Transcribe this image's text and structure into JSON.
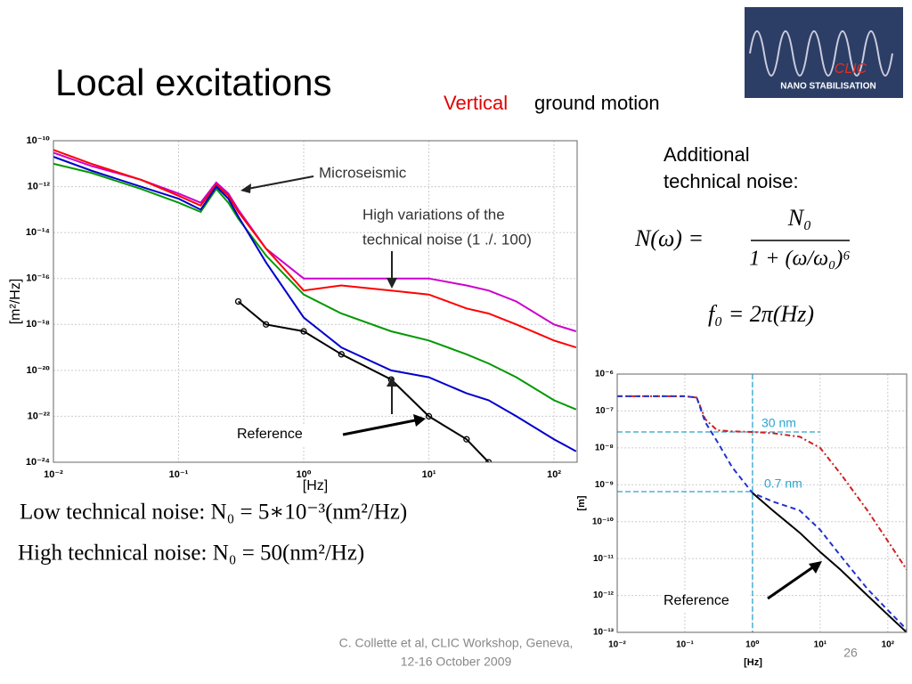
{
  "title": "Local excitations",
  "subtitle": {
    "highlight": "Vertical",
    "rest": "ground motion"
  },
  "note": [
    "Additional",
    "technical noise:"
  ],
  "formula": {
    "lhs": "N(ω) =",
    "numerator": "N₀",
    "denominator": "1 + (ω/ω₀)⁶"
  },
  "f0": "f₀ = 2π(Hz)",
  "low_noise": "Low technical noise:  N₀ = 5∗10⁻³(nm²/Hz)",
  "high_noise": "High technical noise:  N₀ = 50(nm²/Hz)",
  "footer": [
    "C. Collette et al, CLIC Workshop, Geneva,",
    "12-16 October 2009"
  ],
  "page_number": "26",
  "logo": {
    "name": "CLIC",
    "caption": "NANO STABILISATION"
  },
  "chart_data": [
    {
      "type": "line",
      "xscale": "log",
      "yscale": "log",
      "grid": true,
      "xlabel": "[Hz]",
      "ylabel": "[m²/Hz]",
      "annotations": {
        "microseismic": "Microseismic",
        "variations": [
          "High variations of the",
          "technical noise (1 ./. 100)"
        ],
        "reference": "Reference"
      },
      "xlim": [
        0.01,
        153
      ],
      "ylim": [
        1e-24,
        1e-10
      ],
      "xticks": [
        {
          "value": 0.01,
          "label": "10⁻²"
        },
        {
          "value": 0.1,
          "label": "10⁻¹"
        },
        {
          "value": 1,
          "label": "10⁰"
        },
        {
          "value": 10,
          "label": "10¹"
        },
        {
          "value": 100,
          "label": "10²"
        }
      ],
      "yticks": [
        {
          "value": 1e-24,
          "label": "10⁻²⁴"
        },
        {
          "value": 1e-22,
          "label": "10⁻²²"
        },
        {
          "value": 1e-20,
          "label": "10⁻²⁰"
        },
        {
          "value": 1e-18,
          "label": "10⁻¹⁸"
        },
        {
          "value": 1e-16,
          "label": "10⁻¹⁶"
        },
        {
          "value": 1e-14,
          "label": "10⁻¹⁴"
        },
        {
          "value": 1e-12,
          "label": "10⁻¹²"
        },
        {
          "value": 1e-10,
          "label": "10⁻¹⁰"
        }
      ],
      "x": [
        0.01,
        0.02,
        0.05,
        0.1,
        0.15,
        0.2,
        0.25,
        0.3,
        0.5,
        1,
        2,
        5,
        10,
        20,
        30,
        50,
        100,
        150
      ],
      "series": [
        {
          "color": "#cc00cc",
          "values": [
            3e-11,
            8e-12,
            2e-12,
            5e-13,
            2e-13,
            1.5e-12,
            5e-13,
            1e-13,
            2e-15,
            1e-16,
            1e-16,
            1e-16,
            1e-16,
            5e-17,
            3e-17,
            1e-17,
            1e-18,
            5e-19
          ]
        },
        {
          "color": "#ff0000",
          "values": [
            4e-11,
            1e-11,
            2e-12,
            4e-13,
            1.5e-13,
            1.2e-12,
            4e-13,
            8e-14,
            2e-15,
            3e-17,
            5e-17,
            3e-17,
            2e-17,
            5e-18,
            3e-18,
            1e-18,
            2e-19,
            1e-19
          ]
        },
        {
          "color": "#009900",
          "values": [
            1e-11,
            4e-12,
            8e-13,
            2e-13,
            8e-14,
            8e-13,
            2e-13,
            4e-14,
            1e-15,
            2e-17,
            3e-18,
            5e-19,
            2e-19,
            5e-20,
            2e-20,
            5e-21,
            5e-22,
            2e-22
          ]
        },
        {
          "color": "#0000cc",
          "values": [
            2e-11,
            5e-12,
            1e-12,
            3e-13,
            1e-13,
            1e-12,
            3e-13,
            5e-14,
            5e-16,
            2e-18,
            1e-19,
            1e-20,
            5e-21,
            1e-21,
            5e-22,
            1e-22,
            1e-23,
            3e-24
          ]
        },
        {
          "color": "#000000",
          "marker": "circle",
          "values": [
            null,
            null,
            null,
            null,
            null,
            null,
            null,
            1e-17,
            1e-18,
            5e-19,
            5e-20,
            4e-21,
            1e-22,
            1e-23,
            1e-24,
            null,
            null,
            null
          ]
        }
      ]
    },
    {
      "type": "line",
      "xscale": "log",
      "yscale": "log",
      "grid": true,
      "xlabel": "[Hz]",
      "ylabel": "[m]",
      "annotations": {
        "high": "30 nm",
        "low": "0.7 nm",
        "reference": "Reference"
      },
      "guides": [
        {
          "y": 2.7e-08,
          "x_end": 10
        },
        {
          "y": 6.5e-10,
          "x_end": 1
        }
      ],
      "vline": 1,
      "guide_color": "#2aa5cf",
      "xlim": [
        0.01,
        190
      ],
      "ylim": [
        1e-13,
        1e-06
      ],
      "xticks": [
        {
          "value": 0.01,
          "label": "10⁻²"
        },
        {
          "value": 0.1,
          "label": "10⁻¹"
        },
        {
          "value": 1,
          "label": "10⁰"
        },
        {
          "value": 10,
          "label": "10¹"
        },
        {
          "value": 100,
          "label": "10²"
        }
      ],
      "yticks": [
        {
          "value": 1e-13,
          "label": "10⁻¹³"
        },
        {
          "value": 1e-12,
          "label": "10⁻¹²"
        },
        {
          "value": 1e-11,
          "label": "10⁻¹¹"
        },
        {
          "value": 1e-10,
          "label": "10⁻¹⁰"
        },
        {
          "value": 1e-09,
          "label": "10⁻⁹"
        },
        {
          "value": 1e-08,
          "label": "10⁻⁸"
        },
        {
          "value": 1e-07,
          "label": "10⁻⁷"
        },
        {
          "value": 1e-06,
          "label": "10⁻⁶"
        }
      ],
      "x": [
        0.01,
        0.03,
        0.1,
        0.15,
        0.2,
        0.3,
        0.5,
        1,
        2,
        5,
        10,
        20,
        50,
        100,
        190
      ],
      "series": [
        {
          "color": "#cc2222",
          "dash": "6 3 2 3",
          "values": [
            2.5e-07,
            2.5e-07,
            2.5e-07,
            2.3e-07,
            6e-08,
            3e-08,
            2.8e-08,
            2.7e-08,
            2.5e-08,
            2e-08,
            1e-08,
            2e-09,
            2e-10,
            3e-11,
            5e-12
          ]
        },
        {
          "color": "#2233cc",
          "dash": "6 4",
          "values": [
            2.5e-07,
            2.5e-07,
            2.5e-07,
            2.3e-07,
            5e-08,
            1.5e-08,
            3e-09,
            6e-10,
            3.5e-10,
            2e-10,
            6e-11,
            1.2e-11,
            1.5e-12,
            4e-13,
            1.2e-13
          ]
        },
        {
          "color": "#000000",
          "values": [
            null,
            null,
            null,
            null,
            null,
            null,
            null,
            6e-10,
            2e-10,
            5e-11,
            1.5e-11,
            5e-12,
            1e-12,
            3e-13,
            1e-13
          ]
        }
      ]
    }
  ]
}
